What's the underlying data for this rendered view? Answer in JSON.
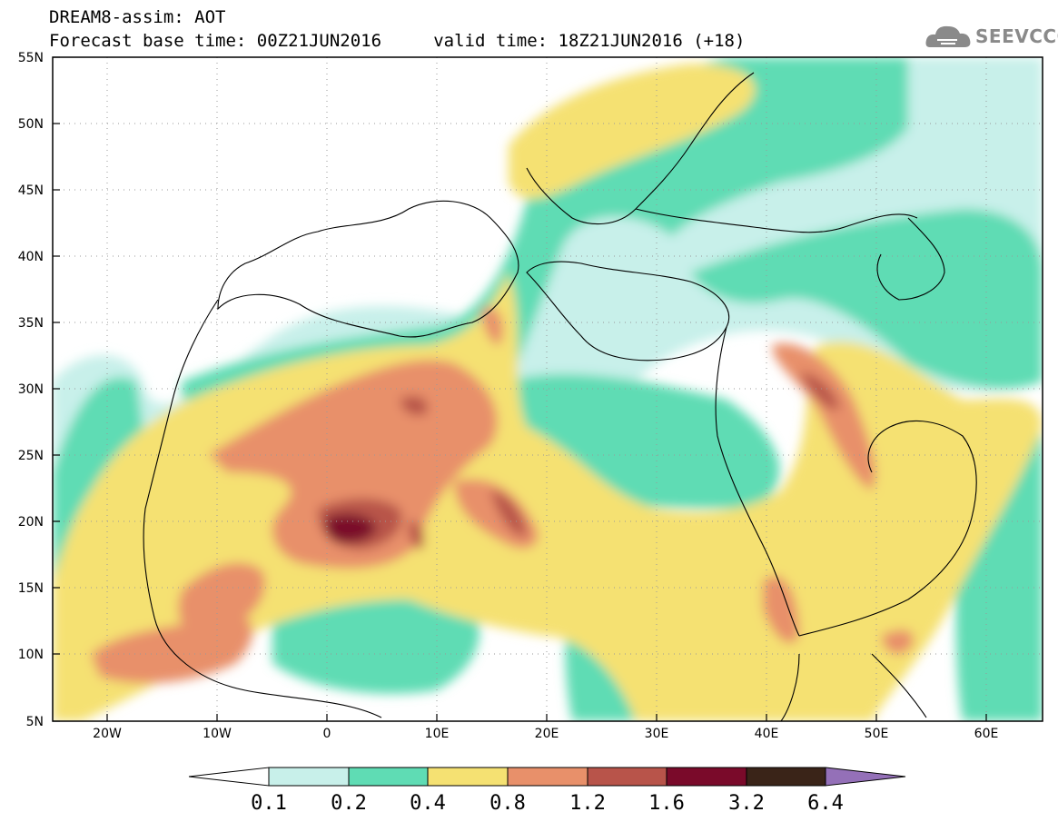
{
  "header": {
    "line1": "DREAM8-assim: AOT",
    "line2": "Forecast base time: 00Z21JUN2016     valid time: 18Z21JUN2016 (+18)"
  },
  "logo": {
    "text": "SEEVCCC",
    "icon": "cloud-icon"
  },
  "map": {
    "lon_range": [
      -25,
      65
    ],
    "lat_range": [
      5,
      55
    ],
    "lat_ticks": [
      "5N",
      "10N",
      "15N",
      "20N",
      "25N",
      "30N",
      "35N",
      "40N",
      "45N",
      "50N",
      "55N"
    ],
    "lon_ticks": [
      "20W",
      "10W",
      "0",
      "10E",
      "20E",
      "30E",
      "40E",
      "50E",
      "60E"
    ]
  },
  "colorbar": {
    "levels": [
      "0.1",
      "0.2",
      "0.4",
      "0.8",
      "1.2",
      "1.6",
      "3.2",
      "6.4"
    ],
    "colors": {
      "under": "#ffffff",
      "c1": "#c8f0ea",
      "c2": "#5fdcb4",
      "c3": "#f5e172",
      "c4": "#e8906a",
      "c5": "#b8544a",
      "c6": "#7a0a2a",
      "c7": "#3a2418",
      "over": "#9470b8"
    }
  }
}
